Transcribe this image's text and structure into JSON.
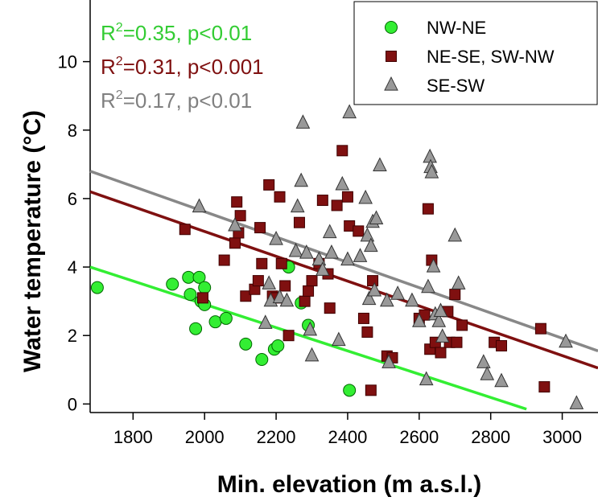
{
  "chart_data": {
    "type": "scatter",
    "xlabel": "Min. elevation (m a.s.l.)",
    "ylabel": "Water temperature (°C)",
    "xlim": [
      1680,
      3100
    ],
    "ylim": [
      -0.25,
      11.8
    ],
    "x_ticks": [
      "1800",
      "2000",
      "2200",
      "2400",
      "2600",
      "2800",
      "3000"
    ],
    "x_tick_values": [
      1800,
      2000,
      2200,
      2400,
      2600,
      2800,
      3000
    ],
    "y_ticks": [
      "0",
      "2",
      "4",
      "6",
      "8",
      "10"
    ],
    "y_tick_values": [
      0,
      2,
      4,
      6,
      8,
      10
    ],
    "grid": false,
    "legend_position": "top-right",
    "annotations": [
      {
        "prefix": "R",
        "sup": "2",
        "text": "=0.35, p<0.01",
        "color": "#33cc33"
      },
      {
        "prefix": "R",
        "sup": "2",
        "text": "=0.31, p<0.001",
        "color": "#7f1010"
      },
      {
        "prefix": "R",
        "sup": "2",
        "text": "=0.17, p<0.01",
        "color": "#808080"
      }
    ],
    "series": [
      {
        "name": "NW-NE",
        "marker": "circle",
        "color": "#33ee33",
        "edge": "#006600",
        "points": [
          [
            1700,
            3.4
          ],
          [
            1910,
            3.5
          ],
          [
            1955,
            3.7
          ],
          [
            1960,
            3.2
          ],
          [
            1975,
            2.2
          ],
          [
            1985,
            3.7
          ],
          [
            1990,
            3.0
          ],
          [
            2000,
            3.4
          ],
          [
            2000,
            2.9
          ],
          [
            2030,
            2.4
          ],
          [
            2060,
            2.5
          ],
          [
            2115,
            1.75
          ],
          [
            2160,
            1.3
          ],
          [
            2195,
            1.6
          ],
          [
            2205,
            1.7
          ],
          [
            2235,
            4.0
          ],
          [
            2270,
            2.95
          ],
          [
            2290,
            2.3
          ],
          [
            2405,
            0.4
          ]
        ],
        "fit": {
          "x": [
            1680,
            2900
          ],
          "y": [
            4.0,
            -0.15
          ],
          "color": "#33ee33"
        }
      },
      {
        "name": "NE-SE, SW-NW",
        "marker": "square",
        "color": "#7f1010",
        "edge": "#400000",
        "points": [
          [
            1945,
            5.1
          ],
          [
            1995,
            3.1
          ],
          [
            2055,
            4.2
          ],
          [
            2085,
            4.7
          ],
          [
            2090,
            5.9
          ],
          [
            2095,
            5.0
          ],
          [
            2100,
            5.5
          ],
          [
            2115,
            3.15
          ],
          [
            2140,
            3.35
          ],
          [
            2150,
            3.6
          ],
          [
            2155,
            5.15
          ],
          [
            2160,
            4.1
          ],
          [
            2180,
            6.4
          ],
          [
            2190,
            3.15
          ],
          [
            2200,
            3.1
          ],
          [
            2210,
            6.05
          ],
          [
            2215,
            4.1
          ],
          [
            2225,
            3.45
          ],
          [
            2235,
            2.0
          ],
          [
            2265,
            5.3
          ],
          [
            2280,
            3.0
          ],
          [
            2290,
            3.3
          ],
          [
            2300,
            3.6
          ],
          [
            2320,
            4.1
          ],
          [
            2330,
            5.95
          ],
          [
            2345,
            3.8
          ],
          [
            2350,
            2.8
          ],
          [
            2370,
            5.8
          ],
          [
            2385,
            7.4
          ],
          [
            2400,
            6.05
          ],
          [
            2405,
            5.2
          ],
          [
            2430,
            5.05
          ],
          [
            2445,
            2.5
          ],
          [
            2455,
            2.1
          ],
          [
            2465,
            0.4
          ],
          [
            2470,
            3.6
          ],
          [
            2510,
            1.4
          ],
          [
            2525,
            1.35
          ],
          [
            2600,
            2.5
          ],
          [
            2615,
            2.6
          ],
          [
            2625,
            5.7
          ],
          [
            2630,
            1.6
          ],
          [
            2635,
            4.2
          ],
          [
            2645,
            1.8
          ],
          [
            2660,
            1.5
          ],
          [
            2680,
            2.7
          ],
          [
            2685,
            1.8
          ],
          [
            2700,
            3.2
          ],
          [
            2705,
            1.8
          ],
          [
            2720,
            2.3
          ],
          [
            2810,
            1.8
          ],
          [
            2830,
            1.7
          ],
          [
            2940,
            2.2
          ],
          [
            2950,
            0.5
          ]
        ],
        "fit": {
          "x": [
            1680,
            3100
          ],
          "y": [
            6.2,
            1.05
          ],
          "color": "#7f1010"
        }
      },
      {
        "name": "SE-SW",
        "marker": "triangle",
        "color": "#999999",
        "edge": "#333333",
        "points": [
          [
            1985,
            5.75
          ],
          [
            2085,
            5.2
          ],
          [
            2170,
            2.35
          ],
          [
            2180,
            3.5
          ],
          [
            2185,
            3.0
          ],
          [
            2200,
            4.8
          ],
          [
            2210,
            3.1
          ],
          [
            2230,
            3.0
          ],
          [
            2255,
            4.45
          ],
          [
            2260,
            5.75
          ],
          [
            2270,
            6.5
          ],
          [
            2275,
            8.2
          ],
          [
            2285,
            4.4
          ],
          [
            2295,
            2.15
          ],
          [
            2300,
            1.4
          ],
          [
            2320,
            4.2
          ],
          [
            2330,
            3.9
          ],
          [
            2350,
            5.0
          ],
          [
            2355,
            4.4
          ],
          [
            2375,
            1.85
          ],
          [
            2385,
            6.4
          ],
          [
            2400,
            4.2
          ],
          [
            2405,
            8.5
          ],
          [
            2435,
            4.3
          ],
          [
            2450,
            6.0
          ],
          [
            2455,
            4.9
          ],
          [
            2460,
            3.05
          ],
          [
            2465,
            4.6
          ],
          [
            2470,
            5.3
          ],
          [
            2475,
            3.3
          ],
          [
            2480,
            5.4
          ],
          [
            2490,
            6.95
          ],
          [
            2510,
            3.0
          ],
          [
            2515,
            1.2
          ],
          [
            2540,
            3.2
          ],
          [
            2580,
            3.0
          ],
          [
            2600,
            2.4
          ],
          [
            2620,
            0.7
          ],
          [
            2625,
            3.4
          ],
          [
            2630,
            7.2
          ],
          [
            2632,
            6.9
          ],
          [
            2635,
            6.75
          ],
          [
            2640,
            4.0
          ],
          [
            2645,
            2.6
          ],
          [
            2655,
            2.4
          ],
          [
            2660,
            2.7
          ],
          [
            2665,
            1.95
          ],
          [
            2700,
            4.9
          ],
          [
            2710,
            3.5
          ],
          [
            2780,
            1.2
          ],
          [
            2790,
            0.85
          ],
          [
            2830,
            0.65
          ],
          [
            3010,
            1.8
          ],
          [
            3040,
            0.0
          ]
        ],
        "fit": {
          "x": [
            1680,
            3100
          ],
          "y": [
            6.8,
            1.55
          ],
          "color": "#888888"
        }
      }
    ]
  }
}
